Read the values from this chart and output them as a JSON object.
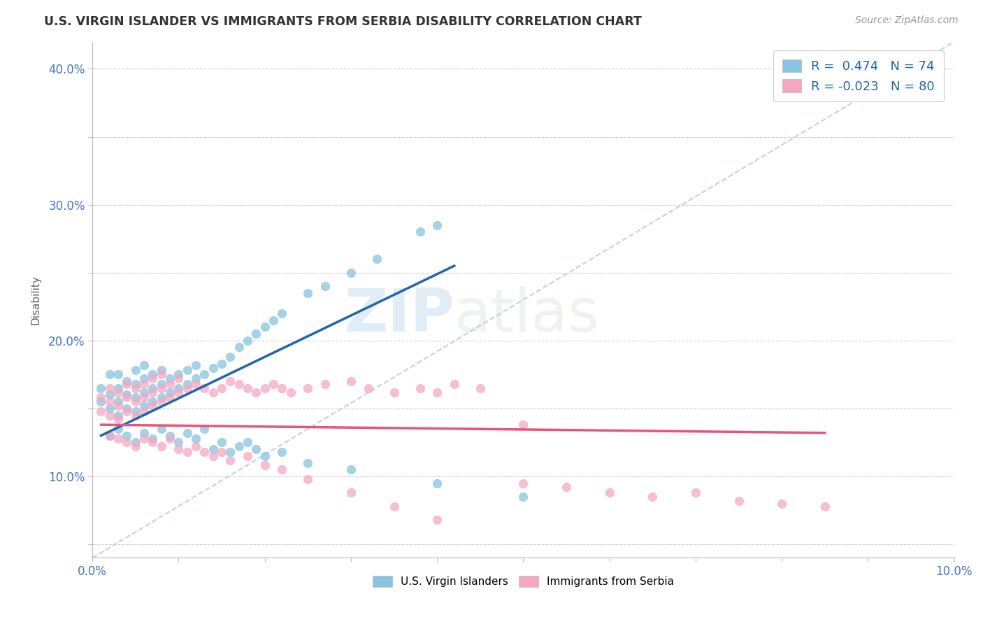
{
  "title": "U.S. VIRGIN ISLANDER VS IMMIGRANTS FROM SERBIA DISABILITY CORRELATION CHART",
  "source": "Source: ZipAtlas.com",
  "xlabel": "",
  "ylabel": "Disability",
  "xlim": [
    0.0,
    0.1
  ],
  "ylim": [
    0.04,
    0.42
  ],
  "xtick_positions": [
    0.0,
    0.01,
    0.02,
    0.03,
    0.04,
    0.05,
    0.06,
    0.07,
    0.08,
    0.09,
    0.1
  ],
  "xtick_labels": [
    "0.0%",
    "",
    "",
    "",
    "",
    "",
    "",
    "",
    "",
    "",
    "10.0%"
  ],
  "ytick_positions": [
    0.05,
    0.1,
    0.15,
    0.2,
    0.25,
    0.3,
    0.35,
    0.4
  ],
  "ytick_labels": [
    "",
    "10.0%",
    "",
    "20.0%",
    "",
    "30.0%",
    "",
    "40.0%"
  ],
  "blue_R": 0.474,
  "blue_N": 74,
  "pink_R": -0.023,
  "pink_N": 80,
  "blue_color": "#89c4e1",
  "pink_color": "#f4a8c0",
  "blue_line_color": "#2166ac",
  "pink_line_color": "#e8547a",
  "watermark_zip": "ZIP",
  "watermark_atlas": "atlas",
  "legend_label_blue": "U.S. Virgin Islanders",
  "legend_label_pink": "Immigrants from Serbia",
  "blue_scatter_x": [
    0.001,
    0.001,
    0.002,
    0.002,
    0.002,
    0.003,
    0.003,
    0.003,
    0.003,
    0.004,
    0.004,
    0.004,
    0.005,
    0.005,
    0.005,
    0.005,
    0.006,
    0.006,
    0.006,
    0.006,
    0.007,
    0.007,
    0.007,
    0.008,
    0.008,
    0.008,
    0.009,
    0.009,
    0.01,
    0.01,
    0.011,
    0.011,
    0.012,
    0.012,
    0.013,
    0.014,
    0.015,
    0.016,
    0.017,
    0.018,
    0.019,
    0.02,
    0.021,
    0.022,
    0.025,
    0.027,
    0.03,
    0.033,
    0.038,
    0.04,
    0.002,
    0.003,
    0.004,
    0.005,
    0.006,
    0.007,
    0.008,
    0.009,
    0.01,
    0.011,
    0.012,
    0.013,
    0.014,
    0.015,
    0.016,
    0.017,
    0.018,
    0.019,
    0.02,
    0.022,
    0.025,
    0.03,
    0.04,
    0.05
  ],
  "blue_scatter_y": [
    0.155,
    0.165,
    0.15,
    0.16,
    0.175,
    0.145,
    0.155,
    0.165,
    0.175,
    0.15,
    0.16,
    0.17,
    0.148,
    0.158,
    0.168,
    0.178,
    0.152,
    0.162,
    0.172,
    0.182,
    0.155,
    0.165,
    0.175,
    0.158,
    0.168,
    0.178,
    0.162,
    0.172,
    0.165,
    0.175,
    0.168,
    0.178,
    0.172,
    0.182,
    0.175,
    0.18,
    0.183,
    0.188,
    0.195,
    0.2,
    0.205,
    0.21,
    0.215,
    0.22,
    0.235,
    0.24,
    0.25,
    0.26,
    0.28,
    0.285,
    0.13,
    0.135,
    0.13,
    0.125,
    0.132,
    0.128,
    0.135,
    0.13,
    0.125,
    0.132,
    0.128,
    0.135,
    0.12,
    0.125,
    0.118,
    0.122,
    0.125,
    0.12,
    0.115,
    0.118,
    0.11,
    0.105,
    0.095,
    0.085
  ],
  "pink_scatter_x": [
    0.001,
    0.001,
    0.002,
    0.002,
    0.002,
    0.003,
    0.003,
    0.003,
    0.004,
    0.004,
    0.004,
    0.005,
    0.005,
    0.005,
    0.006,
    0.006,
    0.006,
    0.007,
    0.007,
    0.007,
    0.008,
    0.008,
    0.008,
    0.009,
    0.009,
    0.01,
    0.01,
    0.011,
    0.012,
    0.013,
    0.014,
    0.015,
    0.016,
    0.017,
    0.018,
    0.019,
    0.02,
    0.021,
    0.022,
    0.023,
    0.025,
    0.027,
    0.03,
    0.032,
    0.035,
    0.038,
    0.04,
    0.042,
    0.045,
    0.05,
    0.002,
    0.003,
    0.004,
    0.005,
    0.006,
    0.007,
    0.008,
    0.009,
    0.01,
    0.011,
    0.012,
    0.013,
    0.014,
    0.015,
    0.016,
    0.018,
    0.02,
    0.022,
    0.025,
    0.03,
    0.035,
    0.04,
    0.05,
    0.055,
    0.06,
    0.065,
    0.07,
    0.075,
    0.08,
    0.085
  ],
  "pink_scatter_y": [
    0.148,
    0.158,
    0.145,
    0.155,
    0.165,
    0.142,
    0.152,
    0.162,
    0.148,
    0.158,
    0.168,
    0.145,
    0.155,
    0.165,
    0.148,
    0.158,
    0.168,
    0.152,
    0.162,
    0.172,
    0.155,
    0.165,
    0.175,
    0.158,
    0.168,
    0.162,
    0.172,
    0.165,
    0.168,
    0.165,
    0.162,
    0.165,
    0.17,
    0.168,
    0.165,
    0.162,
    0.165,
    0.168,
    0.165,
    0.162,
    0.165,
    0.168,
    0.17,
    0.165,
    0.162,
    0.165,
    0.162,
    0.168,
    0.165,
    0.138,
    0.13,
    0.128,
    0.125,
    0.122,
    0.128,
    0.125,
    0.122,
    0.128,
    0.12,
    0.118,
    0.122,
    0.118,
    0.115,
    0.118,
    0.112,
    0.115,
    0.108,
    0.105,
    0.098,
    0.088,
    0.078,
    0.068,
    0.095,
    0.092,
    0.088,
    0.085,
    0.088,
    0.082,
    0.08,
    0.078
  ],
  "blue_line_x": [
    0.001,
    0.042
  ],
  "blue_line_y": [
    0.13,
    0.255
  ],
  "pink_line_x": [
    0.001,
    0.085
  ],
  "pink_line_y": [
    0.138,
    0.132
  ],
  "diag_line_x": [
    0.0,
    0.1
  ],
  "diag_line_y": [
    0.04,
    0.42
  ]
}
